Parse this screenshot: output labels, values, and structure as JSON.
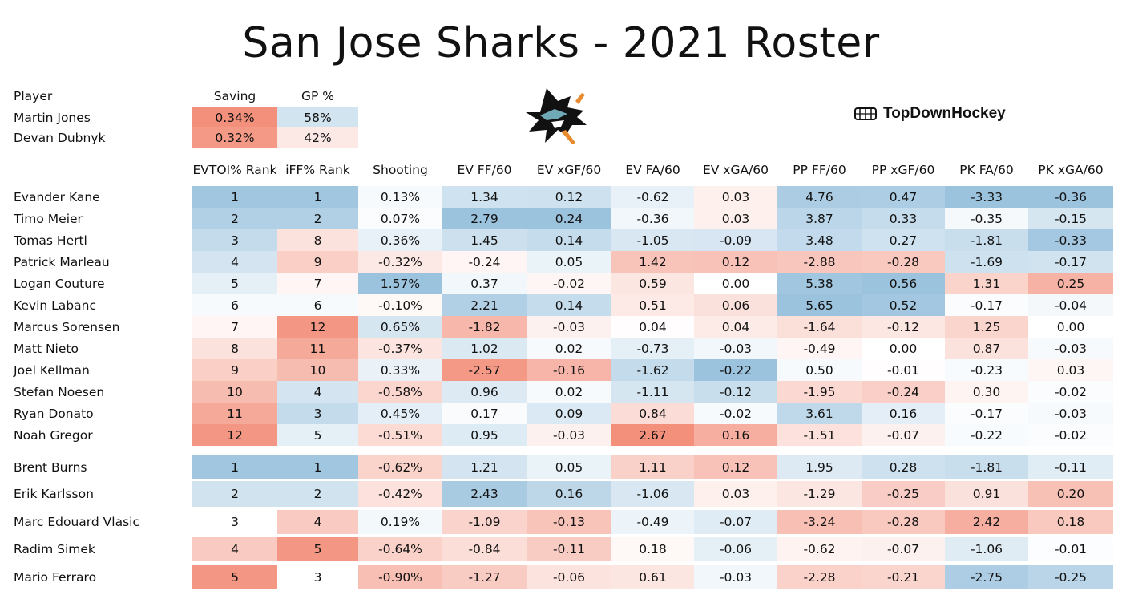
{
  "title": "San Jose Sharks - 2021 Roster",
  "brand": {
    "name": "TopDownHockey",
    "icon": "rink-grid-icon"
  },
  "logo": {
    "icon": "shark-logo-icon"
  },
  "colors": {
    "red_max": "#f2907c",
    "blue_max": "#9cc3de",
    "neutral": "#ffffff"
  },
  "goalie_table": {
    "headers": [
      "Player",
      "Saving",
      "GP %"
    ],
    "rows": [
      {
        "name": "Martin Jones",
        "saving": "0.34%",
        "gp": "58%"
      },
      {
        "name": "Devan Dubnyk",
        "saving": "0.32%",
        "gp": "42%"
      }
    ]
  },
  "skater_headers": [
    "EVTOI% Rank",
    "iFF% Rank",
    "Shooting",
    "EV FF/60",
    "EV xGF/60",
    "EV FA/60",
    "EV xGA/60",
    "PP FF/60",
    "PP xGF/60",
    "PK FA/60",
    "PK xGA/60"
  ],
  "forwards": [
    {
      "name": "Evander Kane",
      "values": [
        "1",
        "1",
        "0.13%",
        "1.34",
        "0.12",
        "-0.62",
        "0.03",
        "4.76",
        "0.47",
        "-3.33",
        "-0.36"
      ]
    },
    {
      "name": "Timo Meier",
      "values": [
        "2",
        "2",
        "0.07%",
        "2.79",
        "0.24",
        "-0.36",
        "0.03",
        "3.87",
        "0.33",
        "-0.35",
        "-0.15"
      ]
    },
    {
      "name": "Tomas Hertl",
      "values": [
        "3",
        "8",
        "0.36%",
        "1.45",
        "0.14",
        "-1.05",
        "-0.09",
        "3.48",
        "0.27",
        "-1.81",
        "-0.33"
      ]
    },
    {
      "name": "Patrick Marleau",
      "values": [
        "4",
        "9",
        "-0.32%",
        "-0.24",
        "0.05",
        "1.42",
        "0.12",
        "-2.88",
        "-0.28",
        "-1.69",
        "-0.17"
      ]
    },
    {
      "name": "Logan Couture",
      "values": [
        "5",
        "7",
        "1.57%",
        "0.37",
        "-0.02",
        "0.59",
        "0.00",
        "5.38",
        "0.56",
        "1.31",
        "0.25"
      ]
    },
    {
      "name": "Kevin Labanc",
      "values": [
        "6",
        "6",
        "-0.10%",
        "2.21",
        "0.14",
        "0.51",
        "0.06",
        "5.65",
        "0.52",
        "-0.17",
        "-0.04"
      ]
    },
    {
      "name": "Marcus Sorensen",
      "values": [
        "7",
        "12",
        "0.65%",
        "-1.82",
        "-0.03",
        "0.04",
        "0.04",
        "-1.64",
        "-0.12",
        "1.25",
        "0.00"
      ]
    },
    {
      "name": "Matt Nieto",
      "values": [
        "8",
        "11",
        "-0.37%",
        "1.02",
        "0.02",
        "-0.73",
        "-0.03",
        "-0.49",
        "0.00",
        "0.87",
        "-0.03"
      ]
    },
    {
      "name": "Joel Kellman",
      "values": [
        "9",
        "10",
        "0.33%",
        "-2.57",
        "-0.16",
        "-1.62",
        "-0.22",
        "0.50",
        "-0.01",
        "-0.23",
        "0.03"
      ]
    },
    {
      "name": "Stefan Noesen",
      "values": [
        "10",
        "4",
        "-0.58%",
        "0.96",
        "0.02",
        "-1.11",
        "-0.12",
        "-1.95",
        "-0.24",
        "0.30",
        "-0.02"
      ]
    },
    {
      "name": "Ryan Donato",
      "values": [
        "11",
        "3",
        "0.45%",
        "0.17",
        "0.09",
        "0.84",
        "-0.02",
        "3.61",
        "0.16",
        "-0.17",
        "-0.03"
      ]
    },
    {
      "name": "Noah Gregor",
      "values": [
        "12",
        "5",
        "-0.51%",
        "0.95",
        "-0.03",
        "2.67",
        "0.16",
        "-1.51",
        "-0.07",
        "-0.22",
        "-0.02"
      ]
    }
  ],
  "defense": [
    {
      "name": "Brent Burns",
      "values": [
        "1",
        "1",
        "-0.62%",
        "1.21",
        "0.05",
        "1.11",
        "0.12",
        "1.95",
        "0.28",
        "-1.81",
        "-0.11"
      ]
    },
    {
      "name": "Erik Karlsson",
      "values": [
        "2",
        "2",
        "-0.42%",
        "2.43",
        "0.16",
        "-1.06",
        "0.03",
        "-1.29",
        "-0.25",
        "0.91",
        "0.20"
      ]
    },
    {
      "name": "Marc Edouard Vlasic",
      "values": [
        "3",
        "4",
        "0.19%",
        "-1.09",
        "-0.13",
        "-0.49",
        "-0.07",
        "-3.24",
        "-0.28",
        "2.42",
        "0.18"
      ]
    },
    {
      "name": "Radim Simek",
      "values": [
        "4",
        "5",
        "-0.64%",
        "-0.84",
        "-0.11",
        "0.18",
        "-0.06",
        "-0.62",
        "-0.07",
        "-1.06",
        "-0.01"
      ]
    },
    {
      "name": "Mario Ferraro",
      "values": [
        "5",
        "3",
        "-0.90%",
        "-1.27",
        "-0.06",
        "0.61",
        "-0.03",
        "-2.28",
        "-0.21",
        "-2.75",
        "-0.25"
      ]
    }
  ]
}
